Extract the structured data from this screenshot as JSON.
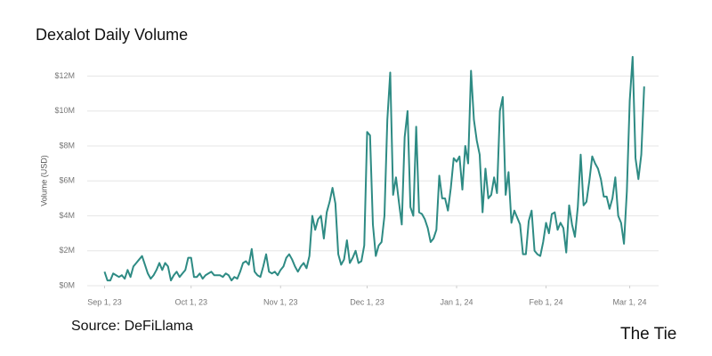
{
  "chart_data": {
    "type": "line",
    "title": "Dexalot Daily Volume",
    "y_label": "Volume (USD)",
    "source": "Source: DeFiLlama",
    "brand": "The Tie",
    "color": "#2e8b84",
    "grid": true,
    "xlim": [
      "2023-08-26",
      "2024-03-11"
    ],
    "xticks": [
      {
        "value": "2023-09-01",
        "label": "Sep 1, 23"
      },
      {
        "value": "2023-10-01",
        "label": "Oct 1, 23"
      },
      {
        "value": "2023-11-01",
        "label": "Nov 1, 23"
      },
      {
        "value": "2023-12-01",
        "label": "Dec 1, 23"
      },
      {
        "value": "2024-01-01",
        "label": "Jan 1, 24"
      },
      {
        "value": "2024-02-01",
        "label": "Feb 1, 24"
      },
      {
        "value": "2024-03-01",
        "label": "Mar 1, 24"
      }
    ],
    "ylim": [
      0,
      13.5
    ],
    "yticks": [
      {
        "value": 0,
        "label": "$0M"
      },
      {
        "value": 2,
        "label": "$2M"
      },
      {
        "value": 4,
        "label": "$4M"
      },
      {
        "value": 6,
        "label": "$6M"
      },
      {
        "value": 8,
        "label": "$8M"
      },
      {
        "value": 10,
        "label": "$10M"
      },
      {
        "value": 12,
        "label": "$12M"
      }
    ],
    "x": [
      "2023-09-01",
      "2023-09-02",
      "2023-09-03",
      "2023-09-04",
      "2023-09-05",
      "2023-09-06",
      "2023-09-07",
      "2023-09-08",
      "2023-09-09",
      "2023-09-10",
      "2023-09-11",
      "2023-09-12",
      "2023-09-13",
      "2023-09-14",
      "2023-09-15",
      "2023-09-16",
      "2023-09-17",
      "2023-09-18",
      "2023-09-19",
      "2023-09-20",
      "2023-09-21",
      "2023-09-22",
      "2023-09-23",
      "2023-09-24",
      "2023-09-25",
      "2023-09-26",
      "2023-09-27",
      "2023-09-28",
      "2023-09-29",
      "2023-09-30",
      "2023-10-01",
      "2023-10-02",
      "2023-10-03",
      "2023-10-04",
      "2023-10-05",
      "2023-10-06",
      "2023-10-07",
      "2023-10-08",
      "2023-10-09",
      "2023-10-10",
      "2023-10-11",
      "2023-10-12",
      "2023-10-13",
      "2023-10-14",
      "2023-10-15",
      "2023-10-16",
      "2023-10-17",
      "2023-10-18",
      "2023-10-19",
      "2023-10-20",
      "2023-10-21",
      "2023-10-22",
      "2023-10-23",
      "2023-10-24",
      "2023-10-25",
      "2023-10-26",
      "2023-10-27",
      "2023-10-28",
      "2023-10-29",
      "2023-10-30",
      "2023-10-31",
      "2023-11-01",
      "2023-11-02",
      "2023-11-03",
      "2023-11-04",
      "2023-11-05",
      "2023-11-06",
      "2023-11-07",
      "2023-11-08",
      "2023-11-09",
      "2023-11-10",
      "2023-11-11",
      "2023-11-12",
      "2023-11-13",
      "2023-11-14",
      "2023-11-15",
      "2023-11-16",
      "2023-11-17",
      "2023-11-18",
      "2023-11-19",
      "2023-11-20",
      "2023-11-21",
      "2023-11-22",
      "2023-11-23",
      "2023-11-24",
      "2023-11-25",
      "2023-11-26",
      "2023-11-27",
      "2023-11-28",
      "2023-11-29",
      "2023-11-30",
      "2023-12-01",
      "2023-12-02",
      "2023-12-03",
      "2023-12-04",
      "2023-12-05",
      "2023-12-06",
      "2023-12-07",
      "2023-12-08",
      "2023-12-09",
      "2023-12-10",
      "2023-12-11",
      "2023-12-12",
      "2023-12-13",
      "2023-12-14",
      "2023-12-15",
      "2023-12-16",
      "2023-12-17",
      "2023-12-18",
      "2023-12-19",
      "2023-12-20",
      "2023-12-21",
      "2023-12-22",
      "2023-12-23",
      "2023-12-24",
      "2023-12-25",
      "2023-12-26",
      "2023-12-27",
      "2023-12-28",
      "2023-12-29",
      "2023-12-30",
      "2023-12-31",
      "2024-01-01",
      "2024-01-02",
      "2024-01-03",
      "2024-01-04",
      "2024-01-05",
      "2024-01-06",
      "2024-01-07",
      "2024-01-08",
      "2024-01-09",
      "2024-01-10",
      "2024-01-11",
      "2024-01-12",
      "2024-01-13",
      "2024-01-14",
      "2024-01-15",
      "2024-01-16",
      "2024-01-17",
      "2024-01-18",
      "2024-01-19",
      "2024-01-20",
      "2024-01-21",
      "2024-01-22",
      "2024-01-23",
      "2024-01-24",
      "2024-01-25",
      "2024-01-26",
      "2024-01-27",
      "2024-01-28",
      "2024-01-29",
      "2024-01-30",
      "2024-01-31",
      "2024-02-01",
      "2024-02-02",
      "2024-02-03",
      "2024-02-04",
      "2024-02-05",
      "2024-02-06",
      "2024-02-07",
      "2024-02-08",
      "2024-02-09",
      "2024-02-10",
      "2024-02-11",
      "2024-02-12",
      "2024-02-13",
      "2024-02-14",
      "2024-02-15",
      "2024-02-16",
      "2024-02-17",
      "2024-02-18",
      "2024-02-19",
      "2024-02-20",
      "2024-02-21",
      "2024-02-22",
      "2024-02-23",
      "2024-02-24",
      "2024-02-25",
      "2024-02-26",
      "2024-02-27",
      "2024-02-28",
      "2024-02-29",
      "2024-03-01",
      "2024-03-02",
      "2024-03-03",
      "2024-03-04",
      "2024-03-05",
      "2024-03-06"
    ],
    "values": [
      0.8,
      0.3,
      0.3,
      0.7,
      0.6,
      0.5,
      0.6,
      0.4,
      0.9,
      0.5,
      1.1,
      1.3,
      1.5,
      1.7,
      1.2,
      0.7,
      0.4,
      0.6,
      0.9,
      1.3,
      0.9,
      1.3,
      1.1,
      0.3,
      0.6,
      0.8,
      0.5,
      0.7,
      0.9,
      1.6,
      1.6,
      0.5,
      0.5,
      0.7,
      0.4,
      0.6,
      0.7,
      0.8,
      0.6,
      0.6,
      0.6,
      0.5,
      0.7,
      0.6,
      0.3,
      0.5,
      0.4,
      0.8,
      1.3,
      1.4,
      1.2,
      2.1,
      0.8,
      0.6,
      0.5,
      1.1,
      1.8,
      0.8,
      0.7,
      0.8,
      0.6,
      0.9,
      1.1,
      1.6,
      1.8,
      1.5,
      1.1,
      0.8,
      1.1,
      1.3,
      1.0,
      1.7,
      4.0,
      3.2,
      3.8,
      4.0,
      2.7,
      4.2,
      4.8,
      5.6,
      4.7,
      1.8,
      1.2,
      1.5,
      2.6,
      1.3,
      1.6,
      2.0,
      1.3,
      1.4,
      2.3,
      8.8,
      8.6,
      3.5,
      1.7,
      2.3,
      2.5,
      4.0,
      9.5,
      12.2,
      5.2,
      6.2,
      4.8,
      3.5,
      8.5,
      10.0,
      4.5,
      4.0,
      9.1,
      4.2,
      4.1,
      3.8,
      3.3,
      2.5,
      2.7,
      3.2,
      6.3,
      5.0,
      5.0,
      4.3,
      5.6,
      7.3,
      7.1,
      7.4,
      5.5,
      8.0,
      7.0,
      12.3,
      9.5,
      8.3,
      7.5,
      4.2,
      6.7,
      5.0,
      5.2,
      6.2,
      5.3,
      10.0,
      10.8,
      5.2,
      6.5,
      3.6,
      4.3,
      3.9,
      3.5,
      1.8,
      1.8,
      3.7,
      4.3,
      2.0,
      1.8,
      1.7,
      2.5,
      3.6,
      3.0,
      4.1,
      4.2,
      3.2,
      3.6,
      3.3,
      1.9,
      4.6,
      3.5,
      2.8,
      4.5,
      7.5,
      4.6,
      4.8,
      6.0,
      7.4,
      7.0,
      6.7,
      6.1,
      5.1,
      5.1,
      4.4,
      5.0,
      6.2,
      4.0,
      3.6,
      2.4,
      5.4,
      10.6,
      13.1,
      7.3,
      6.1,
      7.5,
      11.4
    ]
  }
}
